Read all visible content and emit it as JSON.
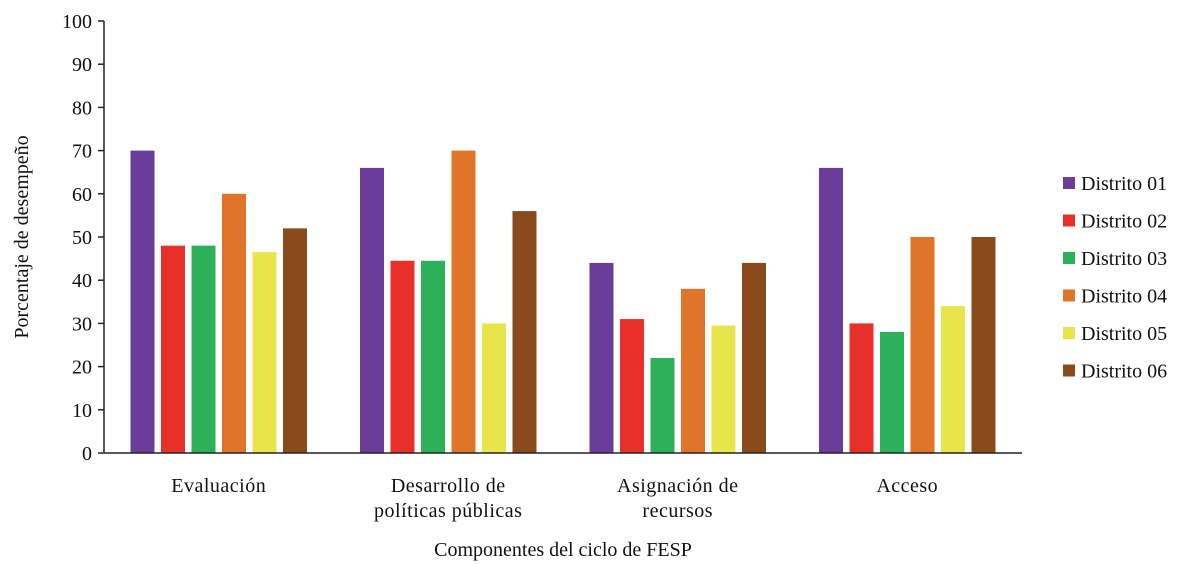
{
  "chart_data": {
    "type": "bar",
    "title": "",
    "xlabel": "Componentes del ciclo de FESP",
    "ylabel": "Porcentaje de desempeño",
    "ylim": [
      0,
      100
    ],
    "yticks": [
      0,
      10,
      20,
      30,
      40,
      50,
      60,
      70,
      80,
      90,
      100
    ],
    "grid": false,
    "legend_position": "right",
    "categories": [
      [
        "Evaluación"
      ],
      [
        "Desarrollo de",
        "políticas públicas"
      ],
      [
        "Asignación de",
        "recursos"
      ],
      [
        "Acceso"
      ]
    ],
    "series": [
      {
        "name": "Distrito 01",
        "color": "#6a3d9a",
        "values": [
          70,
          66,
          44,
          66
        ]
      },
      {
        "name": "Distrito 02",
        "color": "#e8302a",
        "values": [
          48,
          44.5,
          31,
          30
        ]
      },
      {
        "name": "Distrito 03",
        "color": "#2db05a",
        "values": [
          48,
          44.5,
          22,
          28
        ]
      },
      {
        "name": "Distrito 04",
        "color": "#e07428",
        "values": [
          60,
          70,
          38,
          50
        ]
      },
      {
        "name": "Distrito 05",
        "color": "#e8e54a",
        "values": [
          46.5,
          30,
          29.5,
          34
        ]
      },
      {
        "name": "Distrito 06",
        "color": "#8b4a1c",
        "values": [
          52,
          56,
          44,
          50
        ]
      }
    ]
  }
}
